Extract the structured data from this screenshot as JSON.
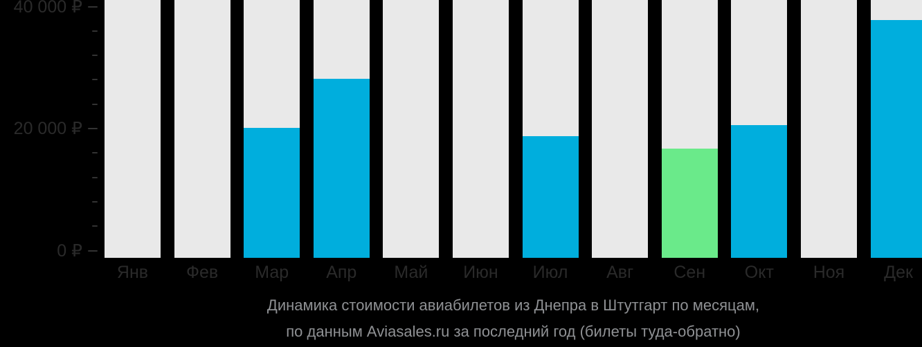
{
  "chart_data": {
    "type": "bar",
    "title_line1": "Динамика стоимости авиабилетов из Днепра в Штутгарт по месяцам,",
    "title_line2": "по данным Aviasales.ru за последний год (билеты туда-обратно)",
    "currency": "₽",
    "categories": [
      "Янв",
      "Фев",
      "Мар",
      "Апр",
      "Май",
      "Июн",
      "Июл",
      "Авг",
      "Сен",
      "Окт",
      "Ноя",
      "Дек"
    ],
    "values": [
      null,
      null,
      20100,
      28200,
      null,
      null,
      18800,
      null,
      16700,
      20600,
      null,
      37800
    ],
    "highlight_index": 8,
    "ylim": [
      0,
      40000
    ],
    "ytick_values": [
      0,
      20000,
      40000
    ],
    "ytick_labels": [
      "0 ₽",
      "20 000 ₽",
      "40 000 ₽"
    ],
    "minor_tick_step": 4000,
    "grid": false,
    "legend": null,
    "colors": {
      "background": "#000000",
      "column_background": "#e9e9e9",
      "bar_default": "#00aedd",
      "bar_highlight": "#6aea8a",
      "axis_text": "#2a2a2a",
      "tick": "#333333",
      "title_text": "#8f9194"
    }
  }
}
